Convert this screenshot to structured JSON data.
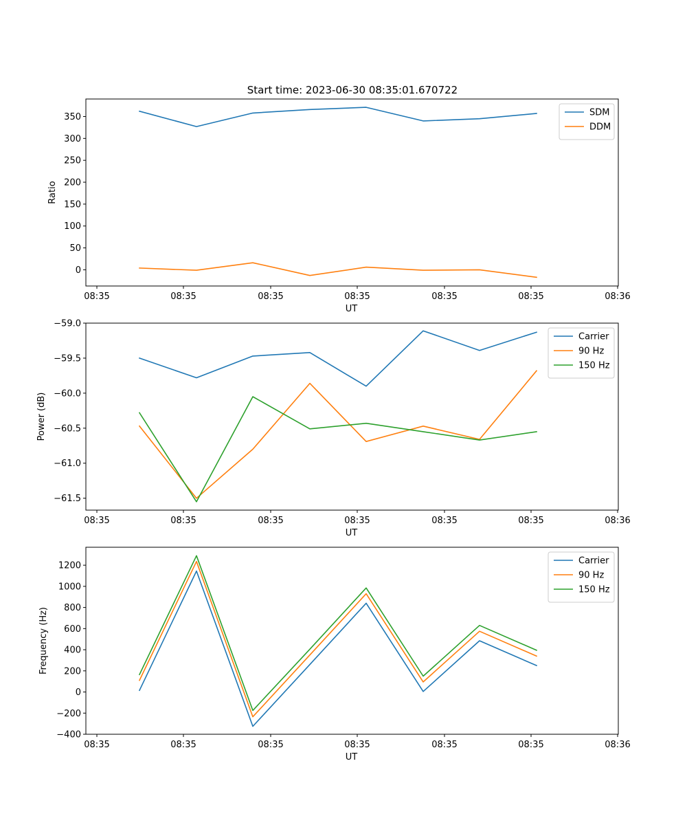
{
  "title": "Start time: 2023-06-30 08:35:01.670722",
  "chart_data": [
    {
      "type": "line",
      "xlabel": "UT",
      "ylabel": "Ratio",
      "x_tick_labels": [
        "08:35",
        "08:35",
        "08:35",
        "08:35",
        "08:35",
        "08:35",
        "08:36"
      ],
      "yticks": [
        0,
        50,
        100,
        150,
        200,
        250,
        300,
        350
      ],
      "ylim": [
        -37,
        390
      ],
      "legend": "top-right",
      "series": [
        {
          "name": "SDM",
          "color": "#1f77b4",
          "values": [
            362,
            327,
            358,
            366,
            371,
            340,
            345,
            357
          ]
        },
        {
          "name": "DDM",
          "color": "#ff7f0e",
          "values": [
            4,
            -1,
            16,
            -13,
            6,
            -1,
            0,
            -17
          ]
        }
      ]
    },
    {
      "type": "line",
      "xlabel": "UT",
      "ylabel": "Power (dB)",
      "x_tick_labels": [
        "08:35",
        "08:35",
        "08:35",
        "08:35",
        "08:35",
        "08:35",
        "08:36"
      ],
      "yticks": [
        -61.5,
        -61.0,
        -60.5,
        -60.0,
        -59.5,
        -59.0
      ],
      "ytick_labels": [
        "−61.5",
        "−61.0",
        "−60.5",
        "−60.0",
        "−59.5",
        "−59.0"
      ],
      "ylim": [
        -61.67,
        -59.0
      ],
      "legend": "top-right",
      "series": [
        {
          "name": "Carrier",
          "color": "#1f77b4",
          "values": [
            -59.5,
            -59.78,
            -59.47,
            -59.42,
            -59.9,
            -59.11,
            -59.39,
            -59.13
          ]
        },
        {
          "name": "90 Hz",
          "color": "#ff7f0e",
          "values": [
            -60.47,
            -61.5,
            -60.8,
            -59.86,
            -60.69,
            -60.47,
            -60.66,
            -59.68
          ]
        },
        {
          "name": "150 Hz",
          "color": "#2ca02c",
          "values": [
            -60.28,
            -61.55,
            -60.05,
            -60.51,
            -60.43,
            -60.55,
            -60.67,
            -60.55
          ]
        }
      ]
    },
    {
      "type": "line",
      "xlabel": "UT",
      "ylabel": "Frequency (Hz)",
      "x_tick_labels": [
        "08:35",
        "08:35",
        "08:35",
        "08:35",
        "08:35",
        "08:35",
        "08:36"
      ],
      "yticks": [
        -400,
        -200,
        0,
        200,
        400,
        600,
        800,
        1000,
        1200
      ],
      "ytick_labels": [
        "−400",
        "−200",
        "0",
        "200",
        "400",
        "600",
        "800",
        "1000",
        "1200"
      ],
      "ylim": [
        -400,
        1370
      ],
      "legend": "top-right",
      "series": [
        {
          "name": "Carrier",
          "color": "#1f77b4",
          "values": [
            15,
            1145,
            -325,
            260,
            840,
            5,
            485,
            250
          ]
        },
        {
          "name": "90 Hz",
          "color": "#ff7f0e",
          "values": [
            110,
            1235,
            -235,
            350,
            930,
            95,
            575,
            340
          ]
        },
        {
          "name": "150 Hz",
          "color": "#2ca02c",
          "values": [
            165,
            1290,
            -175,
            405,
            985,
            150,
            630,
            395
          ]
        }
      ]
    }
  ]
}
